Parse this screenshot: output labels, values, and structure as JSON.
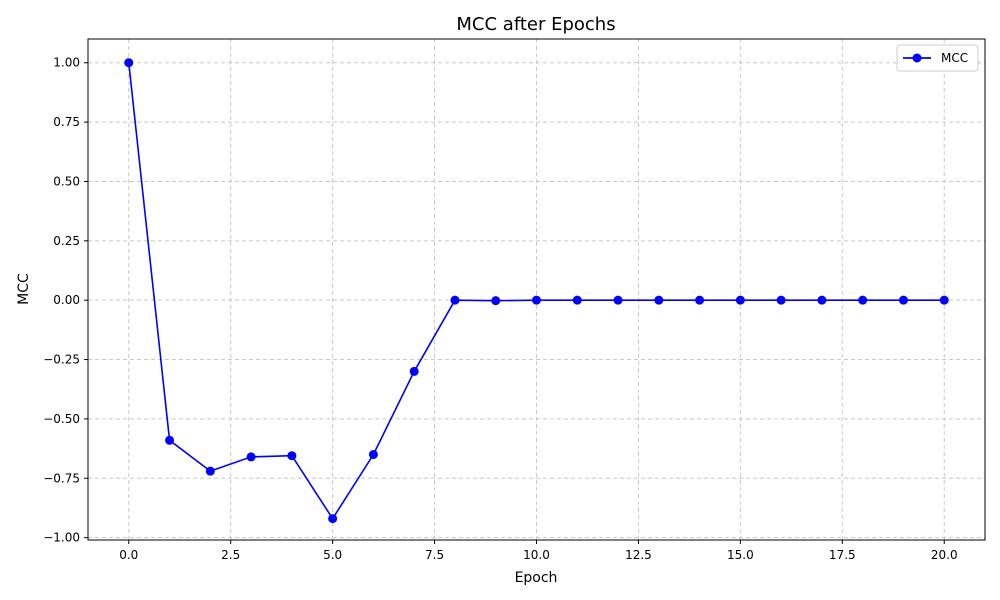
{
  "chart_data": {
    "type": "line",
    "title": "MCC after Epochs",
    "xlabel": "Epoch",
    "ylabel": "MCC",
    "xlim": [
      -1.0,
      21.0
    ],
    "ylim": [
      -1.01,
      1.1
    ],
    "xticks": [
      0.0,
      2.5,
      5.0,
      7.5,
      10.0,
      12.5,
      15.0,
      17.5,
      20.0
    ],
    "xtick_labels": [
      "0.0",
      "2.5",
      "5.0",
      "7.5",
      "10.0",
      "12.5",
      "15.0",
      "17.5",
      "20.0"
    ],
    "yticks": [
      1.0,
      0.75,
      0.5,
      0.25,
      0.0,
      -0.25,
      -0.5,
      -0.75,
      -1.0
    ],
    "ytick_labels": [
      "1.00",
      "0.75",
      "0.50",
      "0.25",
      "0.00",
      "−0.25",
      "−0.50",
      "−0.75",
      "−1.00"
    ],
    "grid": true,
    "legend_position": "top-right",
    "series": [
      {
        "name": "MCC",
        "color": "#0000ff",
        "marker": "circle",
        "x": [
          0,
          1,
          2,
          3,
          4,
          5,
          6,
          7,
          8,
          9,
          10,
          11,
          12,
          13,
          14,
          15,
          16,
          17,
          18,
          19,
          20
        ],
        "y": [
          1.0,
          -0.59,
          -0.72,
          -0.66,
          -0.655,
          -0.92,
          -0.65,
          -0.3,
          0.0,
          -0.002,
          0.0,
          0.0,
          0.0,
          0.0,
          0.0,
          0.0,
          0.0,
          0.0,
          0.0,
          0.0,
          0.0
        ]
      }
    ]
  }
}
